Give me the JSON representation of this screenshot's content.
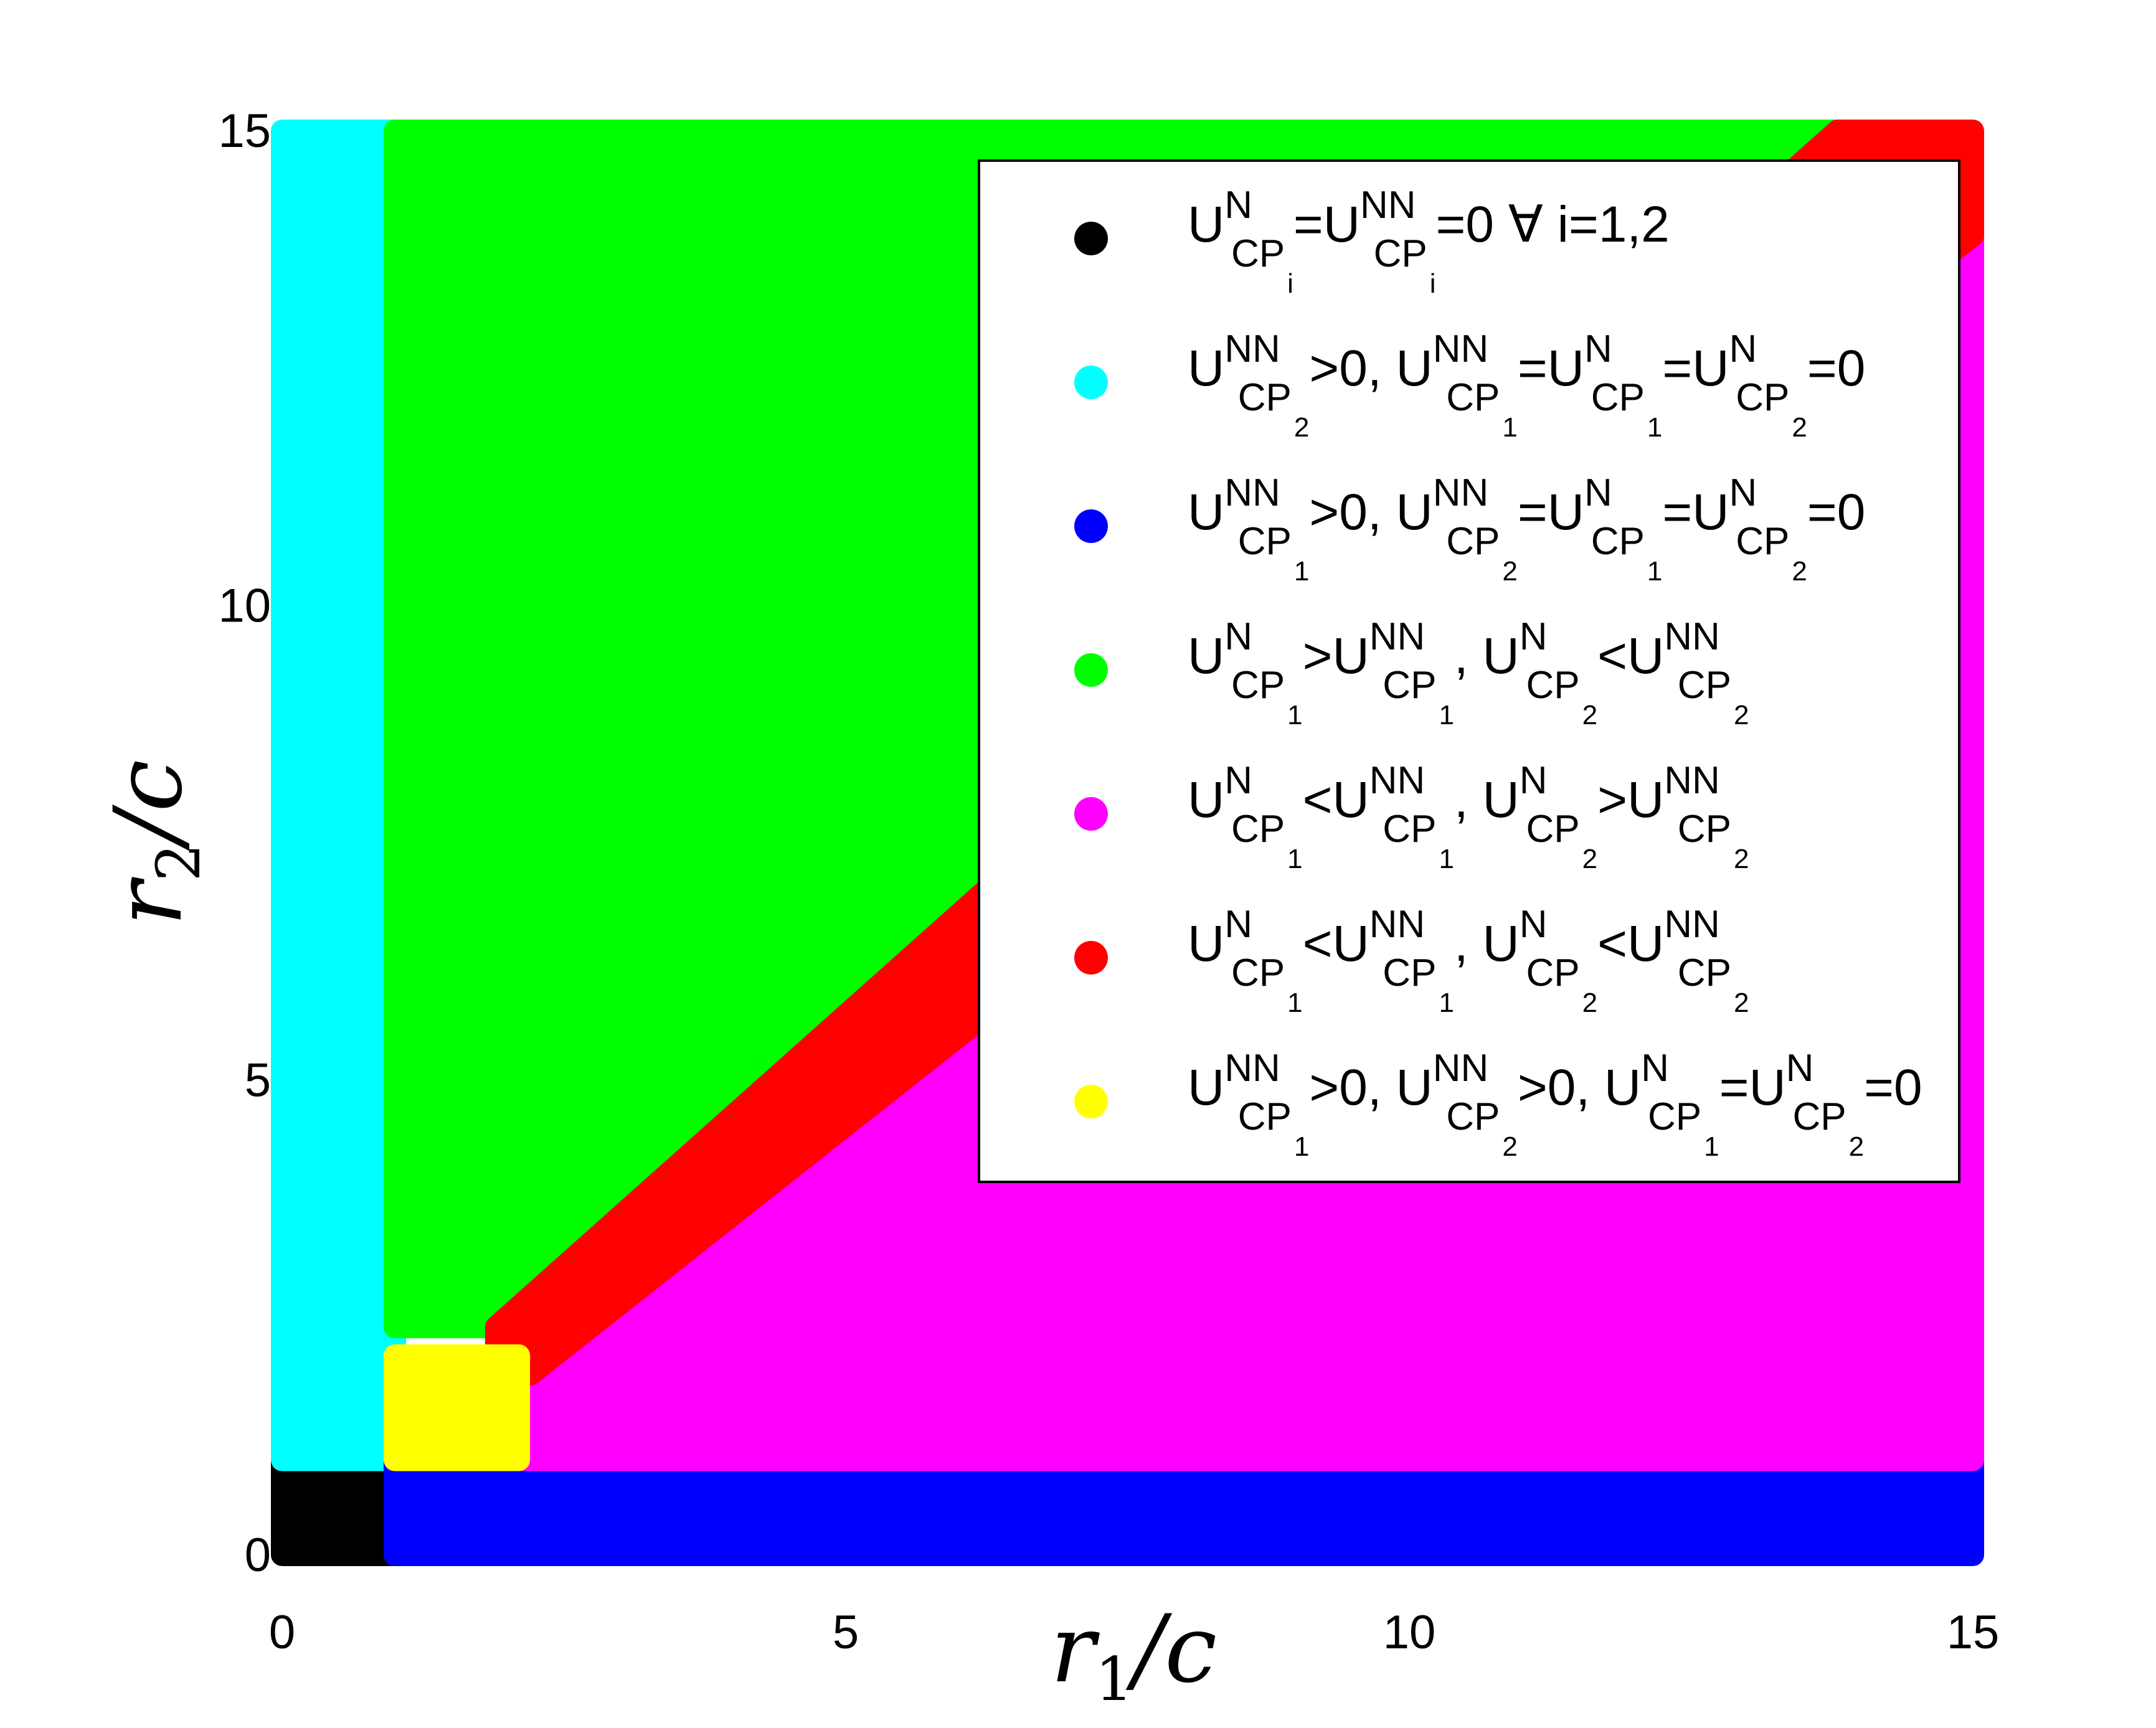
{
  "chart_data": {
    "type": "scatter",
    "title": "",
    "xlabel": {
      "main": "r",
      "sub": "1",
      "rest": "/c"
    },
    "ylabel": {
      "main": "r",
      "sub": "2",
      "rest": "/c"
    },
    "xlim": [
      0,
      15
    ],
    "ylim": [
      0,
      15
    ],
    "xticks": [
      "0",
      "5",
      "10",
      "15"
    ],
    "yticks": [
      "0",
      "5",
      "10",
      "15"
    ],
    "grid": false,
    "legend_position": "upper-right",
    "regions": [
      {
        "key": "black",
        "color": "#000000",
        "polygon": [
          [
            0,
            0
          ],
          [
            1,
            0
          ],
          [
            1,
            1
          ],
          [
            0,
            1
          ]
        ]
      },
      {
        "key": "cyan",
        "color": "#00FFFF",
        "polygon": [
          [
            0,
            1
          ],
          [
            1,
            1
          ],
          [
            1,
            15
          ],
          [
            0,
            15
          ]
        ]
      },
      {
        "key": "blue",
        "color": "#0000FF",
        "polygon": [
          [
            1,
            0
          ],
          [
            15,
            0
          ],
          [
            15,
            1
          ],
          [
            1,
            1
          ]
        ]
      },
      {
        "key": "green",
        "color": "#00FF00",
        "polygon": [
          [
            1,
            2.4
          ],
          [
            2.2,
            2.4
          ],
          [
            14,
            15
          ],
          [
            1,
            15
          ]
        ]
      },
      {
        "key": "magenta",
        "color": "#FF00FF",
        "polygon": [
          [
            1,
            1
          ],
          [
            15,
            1
          ],
          [
            15,
            13.9
          ],
          [
            2.2,
            1.9
          ],
          [
            2.2,
            1
          ],
          [
            1,
            1
          ]
        ]
      },
      {
        "key": "red",
        "color": "#FF0000",
        "polygon": [
          [
            1.9,
            1.9
          ],
          [
            2.2,
            1.9
          ],
          [
            15,
            13.9
          ],
          [
            15,
            15
          ],
          [
            13.8,
            15
          ],
          [
            1.9,
            2.4
          ]
        ]
      },
      {
        "key": "yellow",
        "color": "#FFFF00",
        "polygon": [
          [
            1,
            1
          ],
          [
            2.1,
            1
          ],
          [
            2.1,
            2.1
          ],
          [
            1,
            2.1
          ]
        ]
      }
    ],
    "legend": [
      {
        "color": "#000000",
        "parts": [
          [
            "U"
          ],
          [
            "N",
            "CP",
            "i"
          ],
          [
            "=U"
          ],
          [
            "NN",
            "CP",
            "i"
          ],
          [
            "=0 ∀ i=1,2"
          ]
        ]
      },
      {
        "color": "#00FFFF",
        "parts": [
          [
            "U"
          ],
          [
            "NN",
            "CP",
            "2"
          ],
          [
            ">0, U"
          ],
          [
            "NN",
            "CP",
            "1"
          ],
          [
            "=U"
          ],
          [
            "N",
            "CP",
            "1"
          ],
          [
            "=U"
          ],
          [
            "N",
            "CP",
            "2"
          ],
          [
            "=0"
          ]
        ]
      },
      {
        "color": "#0000FF",
        "parts": [
          [
            "U"
          ],
          [
            "NN",
            "CP",
            "1"
          ],
          [
            ">0, U"
          ],
          [
            "NN",
            "CP",
            "2"
          ],
          [
            "=U"
          ],
          [
            "N",
            "CP",
            "1"
          ],
          [
            "=U"
          ],
          [
            "N",
            "CP",
            "2"
          ],
          [
            "=0"
          ]
        ]
      },
      {
        "color": "#00FF00",
        "parts": [
          [
            " U"
          ],
          [
            "N",
            "CP",
            "1"
          ],
          [
            ">U"
          ],
          [
            "NN",
            "CP",
            "1"
          ],
          [
            ", U"
          ],
          [
            "N",
            "CP",
            "2"
          ],
          [
            "<U"
          ],
          [
            "NN",
            "CP",
            "2"
          ]
        ]
      },
      {
        "color": "#FF00FF",
        "parts": [
          [
            "U"
          ],
          [
            "N",
            "CP",
            "1"
          ],
          [
            "<U"
          ],
          [
            "NN",
            "CP",
            "1"
          ],
          [
            ", U"
          ],
          [
            "N",
            "CP",
            "2"
          ],
          [
            ">U"
          ],
          [
            "NN",
            "CP",
            "2"
          ]
        ]
      },
      {
        "color": "#FF0000",
        "parts": [
          [
            "U"
          ],
          [
            "N",
            "CP",
            "1"
          ],
          [
            "<U"
          ],
          [
            "NN",
            "CP",
            "1"
          ],
          [
            ", U"
          ],
          [
            "N",
            "CP",
            "2"
          ],
          [
            "<U"
          ],
          [
            "NN",
            "CP",
            "2"
          ]
        ]
      },
      {
        "color": "#FFFF00",
        "parts": [
          [
            "U"
          ],
          [
            "NN",
            "CP",
            "1"
          ],
          [
            ">0, U"
          ],
          [
            "NN",
            "CP",
            "2"
          ],
          [
            ">0, U"
          ],
          [
            "N",
            "CP",
            "1"
          ],
          [
            "=U"
          ],
          [
            "N",
            "CP",
            "2"
          ],
          [
            "=0"
          ]
        ]
      }
    ]
  }
}
